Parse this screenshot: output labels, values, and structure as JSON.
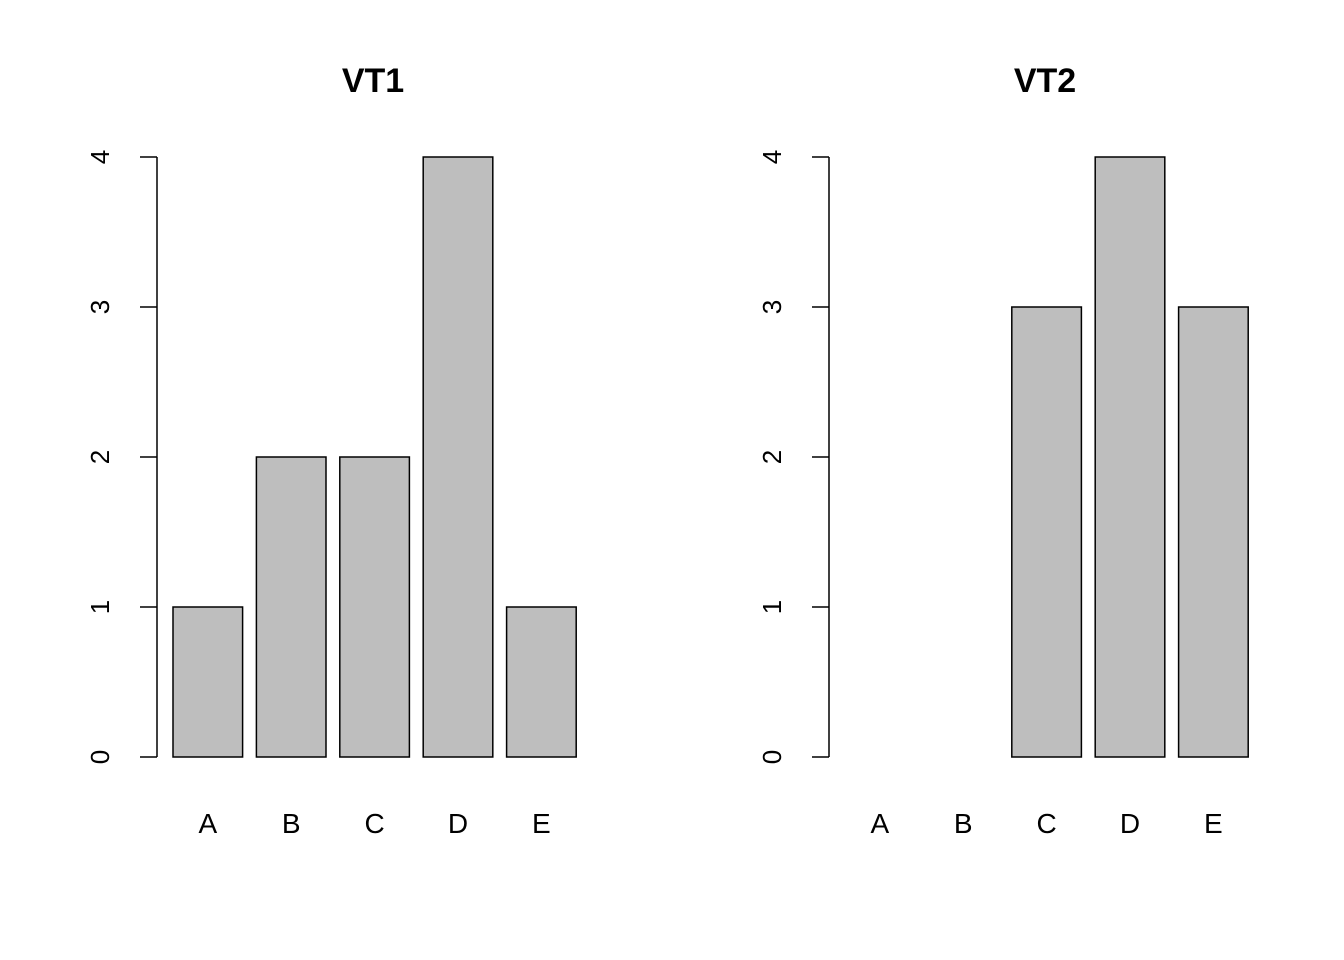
{
  "chart_data": [
    {
      "type": "bar",
      "title": "VT1",
      "categories": [
        "A",
        "B",
        "C",
        "D",
        "E"
      ],
      "values": [
        1,
        2,
        2,
        4,
        1
      ],
      "xlabel": "",
      "ylabel": "",
      "ylim": [
        0,
        4
      ],
      "yticks": [
        "0",
        "1",
        "2",
        "3",
        "4"
      ],
      "grid": false,
      "bar_color": "#BEBEBE"
    },
    {
      "type": "bar",
      "title": "VT2",
      "categories": [
        "A",
        "B",
        "C",
        "D",
        "E"
      ],
      "values": [
        0,
        0,
        3,
        4,
        3
      ],
      "xlabel": "",
      "ylabel": "",
      "ylim": [
        0,
        4
      ],
      "yticks": [
        "0",
        "1",
        "2",
        "3",
        "4"
      ],
      "grid": false,
      "bar_color": "#BEBEBE"
    }
  ]
}
